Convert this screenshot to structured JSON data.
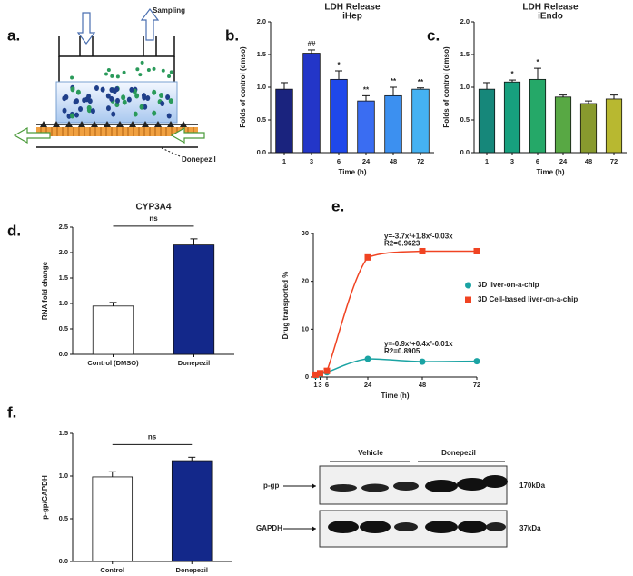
{
  "panels": [
    "a.",
    "b.",
    "c.",
    "d.",
    "e.",
    "f."
  ],
  "diagram": {
    "sampling": "Sampling",
    "drug": "Donepezil"
  },
  "blot": {
    "groups": [
      "Vehicle",
      "Donepezil"
    ],
    "rows": [
      "p-gp",
      "GAPDH"
    ],
    "sizes": [
      "170kDa",
      "37kDa"
    ]
  },
  "chart_data": [
    {
      "type": "bar",
      "title": "LDH Release",
      "subtitle": "iHep",
      "ylabel": "Folds of control (dmso)",
      "xlabel": "Time (h)",
      "categories": [
        "1",
        "3",
        "6",
        "24",
        "48",
        "72"
      ],
      "values": [
        0.97,
        1.52,
        1.12,
        0.79,
        0.87,
        0.97
      ],
      "errors": [
        0.1,
        0.05,
        0.13,
        0.08,
        0.13,
        0.02
      ],
      "annotations": [
        null,
        "##",
        "*",
        "**",
        "**",
        "**"
      ],
      "colors": [
        "#1a237e",
        "#2336c8",
        "#1f48ea",
        "#3a6df2",
        "#3c90f0",
        "#45b2f2"
      ],
      "ylim": [
        0,
        2
      ],
      "yticks": [
        {
          "value": 0,
          "label": "0.0"
        },
        0.5,
        {
          "value": 1,
          "label": "1.0"
        },
        1.5,
        {
          "value": 2,
          "label": "2.0"
        }
      ]
    },
    {
      "type": "bar",
      "title": "LDH Release",
      "subtitle": "iEndo",
      "ylabel": "Folds of control (dmso)",
      "xlabel": "Time (h)",
      "categories": [
        "1",
        "3",
        "6",
        "24",
        "48",
        "72"
      ],
      "values": [
        0.97,
        1.08,
        1.12,
        0.85,
        0.75,
        0.82
      ],
      "errors": [
        0.1,
        0.03,
        0.17,
        0.03,
        0.04,
        0.06
      ],
      "annotations": [
        null,
        "*",
        "*",
        null,
        null,
        null
      ],
      "colors": [
        "#16877a",
        "#17a07e",
        "#25a868",
        "#58a844",
        "#889a2e",
        "#b8b830"
      ],
      "ylim": [
        0,
        2
      ],
      "yticks": [
        {
          "value": 0,
          "label": "0.0"
        },
        0.5,
        {
          "value": 1,
          "label": "1.0"
        },
        1.5,
        {
          "value": 2,
          "label": "2.0"
        }
      ]
    },
    {
      "type": "bar",
      "title": "CYP3A4",
      "ylabel": "RNA fold change",
      "categories": [
        "Control (DMSO)",
        "Donepezil"
      ],
      "values": [
        0.95,
        2.15
      ],
      "errors": [
        0.07,
        0.12
      ],
      "colors": [
        "#ffffff",
        "#13288a"
      ],
      "significance": "ns",
      "ylim": [
        0,
        2.5
      ],
      "yticks": [
        {
          "value": 0,
          "label": "0.0"
        },
        0.5,
        {
          "value": 1,
          "label": "1.0"
        },
        1.5,
        {
          "value": 2,
          "label": "2.0"
        },
        2.5
      ]
    },
    {
      "type": "scatter",
      "ylabel": "Drug transported %",
      "xlabel": "Time (h)",
      "xlim": [
        0,
        72
      ],
      "xticks": [
        1,
        3,
        6,
        24,
        48,
        72
      ],
      "ylim": [
        0,
        30
      ],
      "yticks": [
        0,
        10,
        20,
        30
      ],
      "series": [
        {
          "name": "3D liver-on-a-chip",
          "color": "#1aa3a3",
          "marker": "circle",
          "x": [
            1,
            3,
            6,
            24,
            48,
            72
          ],
          "values": [
            0.3,
            0.6,
            1.0,
            3.8,
            3.2,
            3.3
          ],
          "fit_labels": [
            "y=-0.9x³+0.4x²-0.01x",
            "R2=0.8905"
          ]
        },
        {
          "name": "3D Cell-based liver-on-a-chip",
          "color": "#f04322",
          "marker": "square",
          "x": [
            1,
            3,
            6,
            24,
            48,
            72
          ],
          "values": [
            0.5,
            0.8,
            1.3,
            25,
            26.3,
            26.3
          ],
          "fit_labels": [
            "y=-3.7x³+1.8x²-0.03x",
            "R2=0.9623"
          ]
        }
      ]
    },
    {
      "type": "bar",
      "ylabel": "p-gp/GAPDH",
      "categories": [
        "Control",
        "Donepezil"
      ],
      "values": [
        0.99,
        1.18
      ],
      "errors": [
        0.06,
        0.04
      ],
      "colors": [
        "#ffffff",
        "#13288a"
      ],
      "significance": "ns",
      "ylim": [
        0,
        1.5
      ],
      "yticks": [
        {
          "value": 0,
          "label": "0.0"
        },
        0.5,
        {
          "value": 1,
          "label": "1.0"
        },
        1.5
      ]
    }
  ]
}
